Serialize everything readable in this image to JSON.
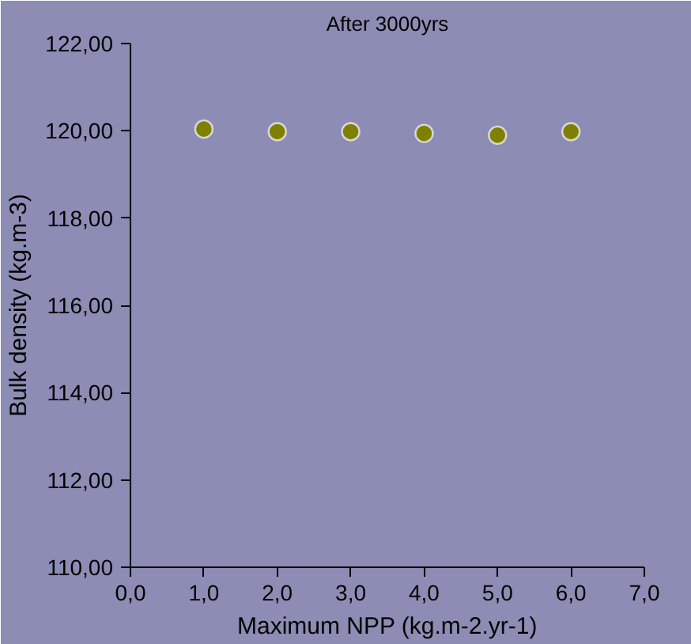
{
  "chart_data": {
    "type": "scatter",
    "title": "After 3000yrs",
    "xlabel": "Maximum NPP (kg.m-2.yr-1)",
    "ylabel": "Bulk density (kg.m-3)",
    "x": [
      1,
      2,
      3,
      4,
      5,
      6
    ],
    "series": [
      {
        "color": "#808000",
        "values": [
          120.04,
          119.98,
          119.98,
          119.94,
          119.9,
          119.98
        ]
      }
    ],
    "xlim": [
      0,
      7
    ],
    "ylim": [
      110,
      122
    ],
    "xticks": [
      {
        "value": 0,
        "label": "0,0"
      },
      {
        "value": 1,
        "label": "1,0"
      },
      {
        "value": 2,
        "label": "2,0"
      },
      {
        "value": 3,
        "label": "3,0"
      },
      {
        "value": 4,
        "label": "4,0"
      },
      {
        "value": 5,
        "label": "5,0"
      },
      {
        "value": 6,
        "label": "6,0"
      },
      {
        "value": 7,
        "label": "7,0"
      }
    ],
    "yticks": [
      {
        "value": 110,
        "label": "110,00"
      },
      {
        "value": 112,
        "label": "112,00"
      },
      {
        "value": 114,
        "label": "114,00"
      },
      {
        "value": 116,
        "label": "116,00"
      },
      {
        "value": 118,
        "label": "118,00"
      },
      {
        "value": 120,
        "label": "120,00"
      },
      {
        "value": 122,
        "label": "122,00"
      }
    ],
    "marker": "circle",
    "grid": false
  }
}
